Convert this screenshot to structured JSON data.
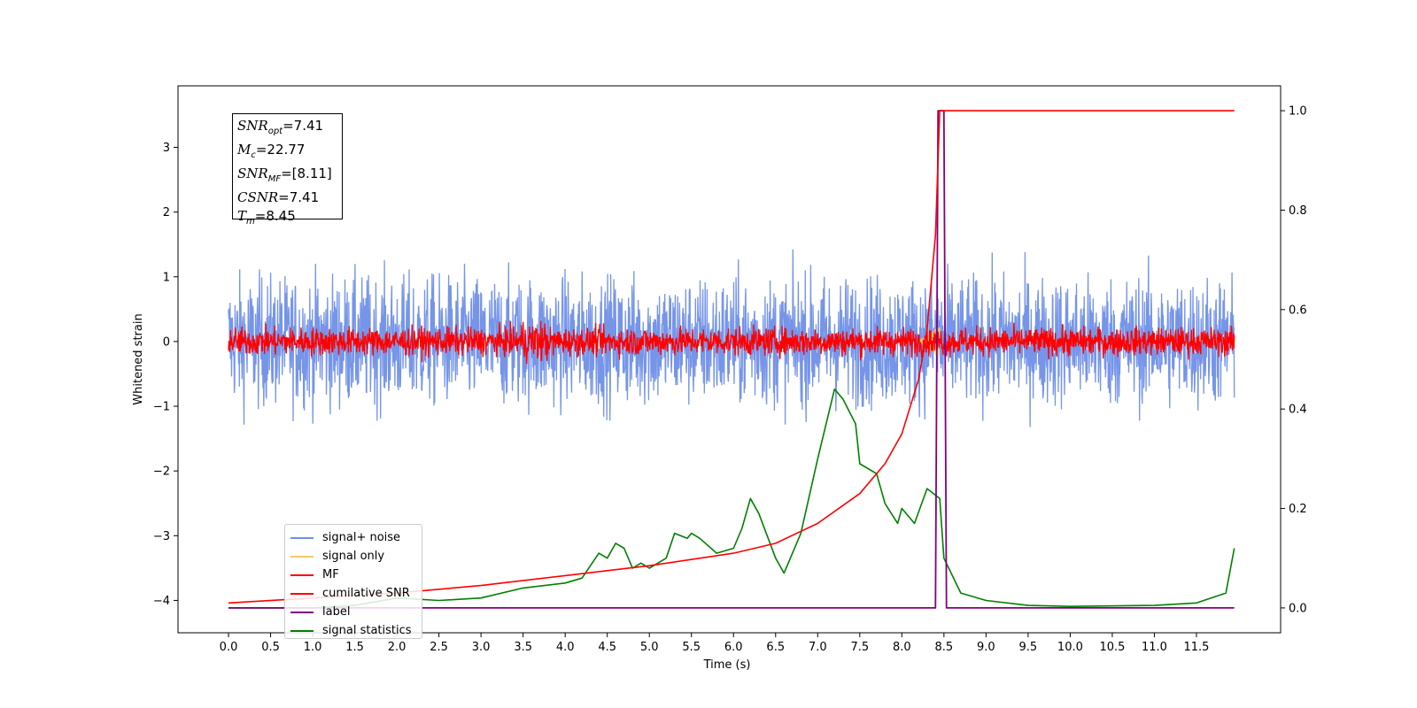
{
  "chart_data": {
    "type": "line",
    "xlabel": "Time (s)",
    "ylabel_left": "Whitened strain",
    "xlim": [
      -0.6,
      12.5
    ],
    "ylim_left": [
      -4.5,
      3.95
    ],
    "ylim_right": [
      -0.05,
      1.05
    ],
    "x_ticks": [
      "0.0",
      "0.5",
      "1.0",
      "1.5",
      "2.0",
      "2.5",
      "3.0",
      "3.5",
      "4.0",
      "4.5",
      "5.0",
      "5.5",
      "6.0",
      "6.5",
      "7.0",
      "7.5",
      "8.0",
      "8.5",
      "9.0",
      "9.5",
      "10.0",
      "10.5",
      "11.0",
      "11.5"
    ],
    "y_ticks_left": [
      "3",
      "2",
      "1",
      "0",
      "−1",
      "−2",
      "−3",
      "−4"
    ],
    "y_ticks_right": [
      "1.0",
      "0.8",
      "0.6",
      "0.4",
      "0.2",
      "0.0"
    ],
    "annotation": {
      "snr_opt": "=7.41",
      "mc": "=22.77",
      "snr_mf": "=[8.11]",
      "csnr": "=7.41",
      "tm": "=8.45"
    },
    "legend": [
      {
        "label": "signal+ noise",
        "color": "#6f8fe8"
      },
      {
        "label": "signal only",
        "color": "#f5c96b"
      },
      {
        "label": "MF",
        "color": "#ff0000"
      },
      {
        "label": "cumilative SNR",
        "color": "#ff0000"
      },
      {
        "label": "label",
        "color": "#800080"
      },
      {
        "label": "signal statistics",
        "color": "#008000"
      }
    ],
    "series": {
      "cumulative_snr": {
        "axis": "right",
        "x": [
          0.0,
          1.0,
          2.0,
          3.0,
          4.0,
          5.0,
          6.0,
          6.5,
          7.0,
          7.5,
          7.8,
          8.0,
          8.2,
          8.3,
          8.4,
          8.45,
          11.95
        ],
        "y": [
          0.01,
          0.02,
          0.03,
          0.045,
          0.065,
          0.085,
          0.11,
          0.13,
          0.17,
          0.23,
          0.29,
          0.35,
          0.46,
          0.56,
          0.75,
          1.0,
          1.0
        ]
      },
      "label": {
        "axis": "right",
        "x": [
          0.0,
          8.4,
          8.43,
          8.5,
          8.53,
          11.95
        ],
        "y": [
          0.0,
          0.0,
          1.0,
          1.0,
          0.0,
          0.0
        ]
      },
      "signal_statistics": {
        "axis": "right",
        "x": [
          0.0,
          0.5,
          1.0,
          1.5,
          2.0,
          2.5,
          3.0,
          3.5,
          4.0,
          4.2,
          4.4,
          4.5,
          4.6,
          4.7,
          4.8,
          4.9,
          5.0,
          5.2,
          5.3,
          5.45,
          5.5,
          5.6,
          5.8,
          6.0,
          6.1,
          6.2,
          6.3,
          6.5,
          6.6,
          6.8,
          7.0,
          7.2,
          7.3,
          7.45,
          7.5,
          7.7,
          7.8,
          7.95,
          8.0,
          8.15,
          8.3,
          8.45,
          8.5,
          8.7,
          9.0,
          9.5,
          10.0,
          11.0,
          11.5,
          11.85,
          11.95
        ],
        "y": [
          0.0,
          0.0,
          0.0,
          0.005,
          0.02,
          0.015,
          0.02,
          0.04,
          0.05,
          0.06,
          0.11,
          0.1,
          0.13,
          0.12,
          0.08,
          0.09,
          0.08,
          0.1,
          0.15,
          0.14,
          0.15,
          0.14,
          0.11,
          0.12,
          0.16,
          0.22,
          0.19,
          0.1,
          0.07,
          0.15,
          0.3,
          0.44,
          0.42,
          0.37,
          0.29,
          0.27,
          0.21,
          0.17,
          0.2,
          0.17,
          0.24,
          0.22,
          0.1,
          0.03,
          0.015,
          0.005,
          0.003,
          0.005,
          0.01,
          0.03,
          0.12
        ]
      },
      "mf": {
        "axis": "left",
        "x": [
          0.0,
          11.95
        ],
        "center": 0.0,
        "amplitude": 0.18
      },
      "signal_plus_noise": {
        "axis": "left",
        "x": [
          0.0,
          11.95
        ],
        "center": 0.0,
        "amplitude": 0.9
      }
    }
  }
}
